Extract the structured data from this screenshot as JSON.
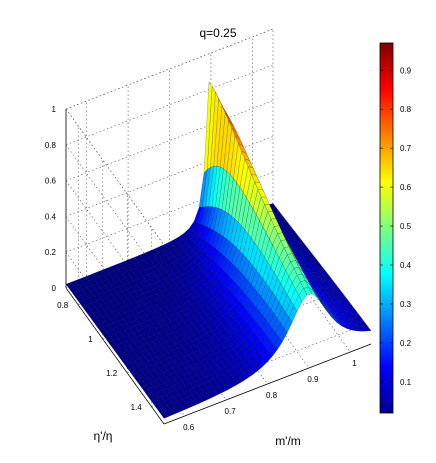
{
  "chart_data": {
    "type": "surface",
    "title": "q=0.25",
    "xlabel": "m'/m",
    "ylabel": "η'/η",
    "zlabel": "",
    "x_ticks": [
      "0.6",
      "0.7",
      "0.8",
      "0.9",
      "1"
    ],
    "y_ticks": [
      "0.8",
      "1",
      "1.2",
      "1.4"
    ],
    "z_ticks": [
      "0",
      "0.2",
      "0.4",
      "0.6",
      "0.8",
      "1"
    ],
    "xlim": [
      0.55,
      1.05
    ],
    "ylim": [
      0.7,
      1.5
    ],
    "zlim": [
      0,
      1
    ],
    "colorbar": {
      "colormap": "jet",
      "range": [
        0.02,
        0.97
      ],
      "ticks": [
        "0.1",
        "0.2",
        "0.3",
        "0.4",
        "0.5",
        "0.6",
        "0.7",
        "0.8",
        "0.9"
      ]
    },
    "surface_extrema": {
      "max_z": 0.97,
      "max_at": {
        "x": 0.9,
        "y": 0.7
      },
      "min_z": 0.02
    },
    "grid": true
  }
}
